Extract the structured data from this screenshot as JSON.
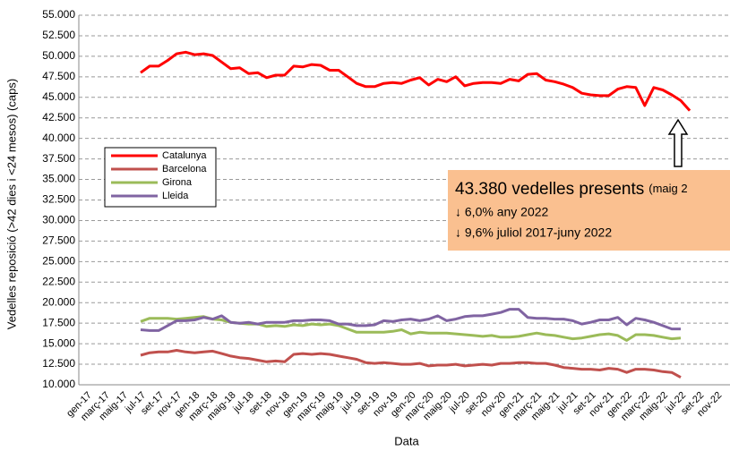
{
  "chart_data": {
    "type": "line",
    "x_label": "Data",
    "y_label": "Vedelles reposició (>42 dies  i <24 mesos) (caps)",
    "categories": [
      "gen-17",
      null,
      "març-17",
      null,
      "maig-17",
      null,
      "jul-17",
      null,
      "set-17",
      null,
      "nov-17",
      null,
      "gen-18",
      null,
      "març-18",
      null,
      "maig-18",
      null,
      "jul-18",
      null,
      "set-18",
      null,
      "nov-18",
      null,
      "gen-19",
      null,
      "març-19",
      null,
      "maig-19",
      null,
      "jul-19",
      null,
      "set-19",
      null,
      "nov-19",
      null,
      "gen-20",
      null,
      "març-20",
      null,
      "maig-20",
      null,
      "jul-20",
      null,
      "set-20",
      null,
      "nov-20",
      null,
      "gen-21",
      null,
      "març-21",
      null,
      "maig-21",
      null,
      "jul-21",
      null,
      "set-21",
      null,
      "nov-21",
      null,
      "gen-22",
      null,
      "març-22",
      null,
      "maig-22",
      null,
      "jul-22",
      null,
      "set-22",
      null,
      "nov-22"
    ],
    "series": [
      {
        "name": "Catalunya",
        "color": "#ff0000",
        "values": [
          null,
          null,
          null,
          null,
          null,
          null,
          48000,
          48800,
          48800,
          49500,
          50300,
          50500,
          50200,
          50300,
          50100,
          49300,
          48500,
          48600,
          47900,
          48000,
          47400,
          47700,
          47700,
          48800,
          48700,
          49000,
          48900,
          48300,
          48300,
          47500,
          46700,
          46300,
          46300,
          46700,
          46800,
          46700,
          47100,
          47400,
          46500,
          47200,
          46900,
          47500,
          46400,
          46700,
          46800,
          46800,
          46700,
          47200,
          47000,
          47800,
          47900,
          47100,
          46900,
          46600,
          46200,
          45500,
          45300,
          45200,
          45200,
          46000,
          46300,
          46200,
          44000,
          46200,
          45900,
          45300,
          44600,
          43380,
          null,
          null,
          null
        ]
      },
      {
        "name": "Barcelona",
        "color": "#c0504d",
        "values": [
          null,
          null,
          null,
          null,
          null,
          null,
          13600,
          13900,
          14000,
          14000,
          14200,
          14000,
          13900,
          14000,
          14100,
          13800,
          13500,
          13300,
          13200,
          13000,
          12800,
          12900,
          12800,
          13700,
          13800,
          13700,
          13800,
          13700,
          13500,
          13300,
          13100,
          12700,
          12600,
          12700,
          12600,
          12500,
          12500,
          12600,
          12300,
          12400,
          12400,
          12500,
          12300,
          12400,
          12500,
          12400,
          12600,
          12600,
          12700,
          12700,
          12600,
          12600,
          12400,
          12100,
          12000,
          11900,
          11900,
          11800,
          12000,
          11900,
          11500,
          11900,
          11900,
          11800,
          11600,
          11500,
          10900,
          null,
          null,
          null,
          null
        ]
      },
      {
        "name": "Girona",
        "color": "#9bbb59",
        "values": [
          null,
          null,
          null,
          null,
          null,
          null,
          17700,
          18100,
          18100,
          18100,
          18000,
          18100,
          18200,
          18300,
          18000,
          17900,
          17600,
          17500,
          17400,
          17400,
          17100,
          17200,
          17100,
          17300,
          17200,
          17400,
          17300,
          17400,
          17200,
          16800,
          16400,
          16400,
          16400,
          16400,
          16500,
          16700,
          16200,
          16400,
          16300,
          16300,
          16300,
          16200,
          16100,
          16000,
          15900,
          16000,
          15800,
          15800,
          15900,
          16100,
          16300,
          16100,
          16000,
          15800,
          15600,
          15700,
          15900,
          16100,
          16200,
          16000,
          15400,
          16100,
          16100,
          16000,
          15800,
          15600,
          15700,
          null,
          null,
          null,
          null
        ]
      },
      {
        "name": "Lleida",
        "color": "#8064a2",
        "values": [
          null,
          null,
          null,
          null,
          null,
          null,
          16700,
          16600,
          16600,
          17200,
          17800,
          17800,
          17900,
          18200,
          18000,
          18400,
          17600,
          17500,
          17600,
          17400,
          17600,
          17600,
          17600,
          17800,
          17800,
          17900,
          17900,
          17800,
          17400,
          17400,
          17200,
          17200,
          17300,
          17800,
          17700,
          17900,
          18000,
          17800,
          18000,
          18400,
          17800,
          18000,
          18300,
          18400,
          18400,
          18600,
          18800,
          19200,
          19200,
          18200,
          18100,
          18100,
          18000,
          18000,
          17800,
          17400,
          17600,
          17900,
          17900,
          18200,
          17300,
          18100,
          17900,
          17600,
          17200,
          16800,
          16800,
          null,
          null,
          null,
          null
        ]
      }
    ],
    "ylim": [
      10000,
      55000
    ],
    "yticks": [
      {
        "value": 10000,
        "label": "10.000"
      },
      {
        "value": 12500,
        "label": "12.500"
      },
      {
        "value": 15000,
        "label": "15.000"
      },
      {
        "value": 17500,
        "label": "17.500"
      },
      {
        "value": 20000,
        "label": "20.000"
      },
      {
        "value": 22500,
        "label": "22.500"
      },
      {
        "value": 25000,
        "label": "25.000"
      },
      {
        "value": 27500,
        "label": "27.500"
      },
      {
        "value": 30000,
        "label": "30.000"
      },
      {
        "value": 32500,
        "label": "32.500"
      },
      {
        "value": 35000,
        "label": "35.000"
      },
      {
        "value": 37500,
        "label": "37.500"
      },
      {
        "value": 40000,
        "label": "40.000"
      },
      {
        "value": 42500,
        "label": "42.500"
      },
      {
        "value": 45000,
        "label": "45.000"
      },
      {
        "value": 47500,
        "label": "47.500"
      },
      {
        "value": 50000,
        "label": "50.000"
      },
      {
        "value": 52500,
        "label": "52.500"
      },
      {
        "value": 55000,
        "label": "55.000"
      }
    ],
    "grid": true,
    "annotation": {
      "headline": "43.380 vedelles presents",
      "headline_note": "(maig 2",
      "line1": "↓ 6,0% any 2022",
      "line2": "↓ 9,6% juliol 2017-juny 2022"
    }
  }
}
